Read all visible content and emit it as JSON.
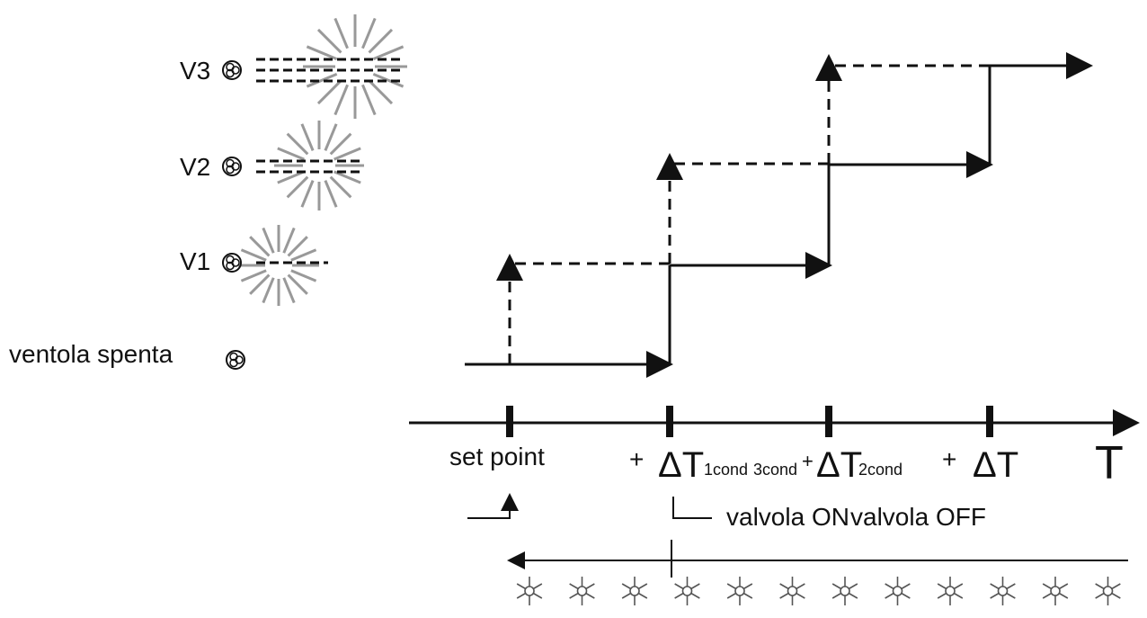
{
  "fan_levels": {
    "v3": "V3",
    "v2": "V2",
    "v1": "V1",
    "off": "ventola spenta"
  },
  "axis": {
    "label": "T",
    "setpoint": "set point",
    "step1": {
      "plus": "+",
      "delta": "ΔT",
      "sub": "1cond"
    },
    "step2": {
      "plus": "+",
      "delta": "ΔT",
      "sub": "2cond",
      "sub_alt": "3cond"
    },
    "step3": {
      "plus": "+",
      "delta": "ΔT"
    }
  },
  "valve": {
    "on": "valvola ON",
    "off": "valvola OFF"
  }
}
